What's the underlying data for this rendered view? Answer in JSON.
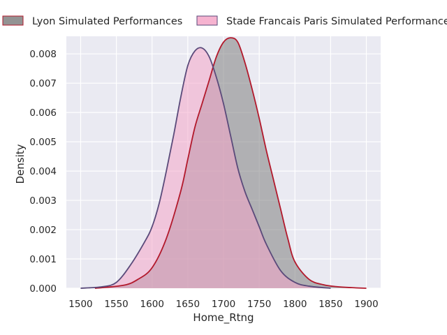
{
  "chart_data": {
    "type": "area",
    "xlabel": "Home_Rtng",
    "ylabel": "Density",
    "xlim": [
      1480,
      1920
    ],
    "ylim": [
      0,
      0.0086
    ],
    "xticks": [
      1500,
      1550,
      1600,
      1650,
      1700,
      1750,
      1800,
      1850,
      1900
    ],
    "yticks": [
      0.0,
      0.001,
      0.002,
      0.003,
      0.004,
      0.005,
      0.006,
      0.007,
      0.008
    ],
    "grid": true,
    "legend_position": "top",
    "background_color": "#eaeaf2",
    "series": [
      {
        "name": "Lyon Simulated Performances",
        "fill_color": "#808080",
        "line_color": "#b2182b",
        "x": [
          1520,
          1560,
          1580,
          1600,
          1620,
          1640,
          1650,
          1660,
          1670,
          1680,
          1690,
          1700,
          1710,
          1720,
          1730,
          1740,
          1750,
          1760,
          1770,
          1780,
          1790,
          1800,
          1820,
          1840,
          1860,
          1880,
          1900
        ],
        "y": [
          0.0,
          0.0001,
          0.0003,
          0.0007,
          0.0017,
          0.0033,
          0.0044,
          0.0055,
          0.0063,
          0.0071,
          0.0079,
          0.0084,
          0.00855,
          0.0084,
          0.0077,
          0.0068,
          0.0058,
          0.0047,
          0.0037,
          0.0027,
          0.0017,
          0.0009,
          0.0003,
          0.00012,
          5e-05,
          2e-05,
          0.0
        ]
      },
      {
        "name": "Stade Francais Paris Simulated Performances",
        "fill_color": "#f4a6c8",
        "line_color": "#5a4a7a",
        "x": [
          1500,
          1530,
          1550,
          1570,
          1590,
          1600,
          1610,
          1620,
          1630,
          1640,
          1650,
          1660,
          1670,
          1680,
          1690,
          1700,
          1710,
          1720,
          1730,
          1740,
          1750,
          1760,
          1780,
          1800,
          1820,
          1850
        ],
        "y": [
          0.0,
          5e-05,
          0.0002,
          0.0008,
          0.0016,
          0.0021,
          0.0029,
          0.004,
          0.0052,
          0.0065,
          0.0076,
          0.0081,
          0.0082,
          0.0079,
          0.0072,
          0.0063,
          0.0052,
          0.0041,
          0.0033,
          0.0027,
          0.0021,
          0.0015,
          0.0006,
          0.0002,
          7e-05,
          0.0
        ]
      }
    ]
  }
}
